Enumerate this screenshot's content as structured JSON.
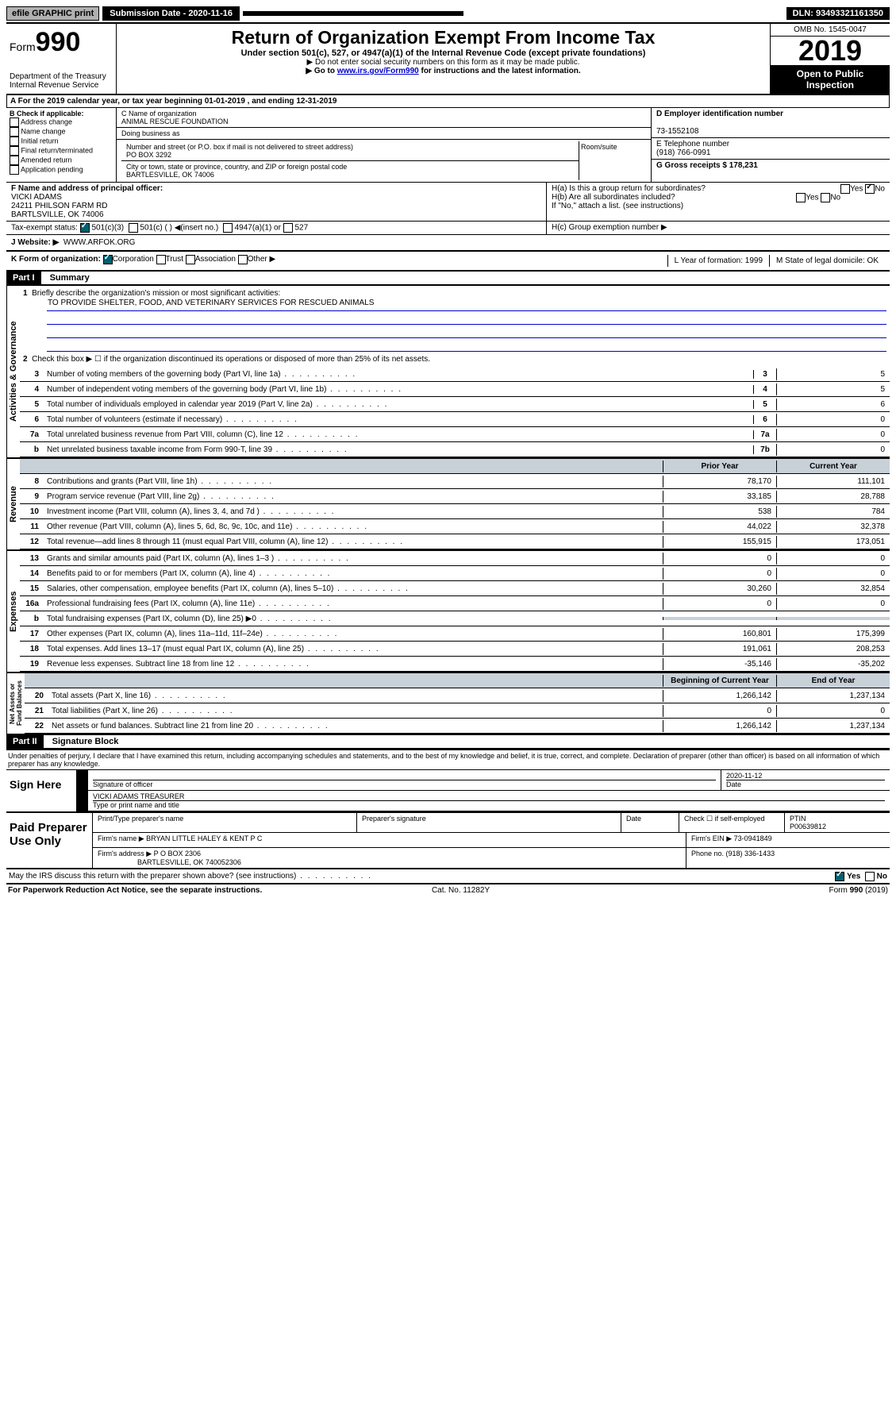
{
  "topbar": {
    "efile": "efile GRAPHIC print",
    "submission_label": "Submission Date - 2020-11-16",
    "dln": "DLN: 93493321161350"
  },
  "header": {
    "form_prefix": "Form",
    "form_number": "990",
    "dept": "Department of the Treasury\nInternal Revenue Service",
    "title": "Return of Organization Exempt From Income Tax",
    "subtitle": "Under section 501(c), 527, or 4947(a)(1) of the Internal Revenue Code (except private foundations)",
    "note1": "▶ Do not enter social security numbers on this form as it may be made public.",
    "note2_pre": "▶ Go to ",
    "note2_link": "www.irs.gov/Form990",
    "note2_post": " for instructions and the latest information.",
    "omb": "OMB No. 1545-0047",
    "year": "2019",
    "open": "Open to Public Inspection"
  },
  "period": "A For the 2019 calendar year, or tax year beginning 01-01-2019   , and ending 12-31-2019",
  "boxB": {
    "label": "B Check if applicable:",
    "opts": [
      "Address change",
      "Name change",
      "Initial return",
      "Final return/terminated",
      "Amended return",
      "Application pending"
    ]
  },
  "boxC": {
    "name_label": "C Name of organization",
    "name": "ANIMAL RESCUE FOUNDATION",
    "dba": "Doing business as",
    "addr_label": "Number and street (or P.O. box if mail is not delivered to street address)",
    "room": "Room/suite",
    "addr": "PO BOX 3292",
    "city_label": "City or town, state or province, country, and ZIP or foreign postal code",
    "city": "BARTLESVILLE, OK  74006"
  },
  "boxD": {
    "label": "D Employer identification number",
    "val": "73-1552108"
  },
  "boxE": {
    "label": "E Telephone number",
    "val": "(918) 766-0991"
  },
  "boxG": {
    "label": "G Gross receipts $ 178,231"
  },
  "boxF": {
    "label": "F Name and address of principal officer:",
    "name": "VICKI ADAMS",
    "addr1": "24211 PHILSON FARM RD",
    "addr2": "BARTLSVILLE, OK  74006"
  },
  "boxH": {
    "a": "H(a)  Is this a group return for subordinates?",
    "b": "H(b)  Are all subordinates included?",
    "b2": "If \"No,\" attach a list. (see instructions)",
    "c": "H(c)  Group exemption number ▶"
  },
  "taxstatus": {
    "label": "Tax-exempt status:",
    "c3": "501(c)(3)",
    "c": "501(c) (  ) ◀(insert no.)",
    "a1": "4947(a)(1) or",
    "s527": "527"
  },
  "boxJ": {
    "label": "J   Website: ▶",
    "val": "WWW.ARFOK.ORG"
  },
  "boxK": {
    "label": "K Form of organization:",
    "corp": "Corporation",
    "trust": "Trust",
    "assoc": "Association",
    "other": "Other ▶"
  },
  "boxL": {
    "label": "L Year of formation: 1999"
  },
  "boxM": {
    "label": "M State of legal domicile: OK"
  },
  "part1": {
    "header": "Part I",
    "title": "Summary",
    "q1": "Briefly describe the organization's mission or most significant activities:",
    "mission": "TO PROVIDE SHELTER, FOOD, AND VETERINARY SERVICES FOR RESCUED ANIMALS",
    "q2": "Check this box ▶ ☐  if the organization discontinued its operations or disposed of more than 25% of its net assets.",
    "lines_gov": [
      {
        "n": "3",
        "t": "Number of voting members of the governing body (Part VI, line 1a)",
        "box": "3",
        "v": "5"
      },
      {
        "n": "4",
        "t": "Number of independent voting members of the governing body (Part VI, line 1b)",
        "box": "4",
        "v": "5"
      },
      {
        "n": "5",
        "t": "Total number of individuals employed in calendar year 2019 (Part V, line 2a)",
        "box": "5",
        "v": "6"
      },
      {
        "n": "6",
        "t": "Total number of volunteers (estimate if necessary)",
        "box": "6",
        "v": "0"
      },
      {
        "n": "7a",
        "t": "Total unrelated business revenue from Part VIII, column (C), line 12",
        "box": "7a",
        "v": "0"
      },
      {
        "n": "b",
        "t": "Net unrelated business taxable income from Form 990-T, line 39",
        "box": "7b",
        "v": "0"
      }
    ],
    "col_prior": "Prior Year",
    "col_current": "Current Year",
    "lines_rev": [
      {
        "n": "8",
        "t": "Contributions and grants (Part VIII, line 1h)",
        "p": "78,170",
        "c": "111,101"
      },
      {
        "n": "9",
        "t": "Program service revenue (Part VIII, line 2g)",
        "p": "33,185",
        "c": "28,788"
      },
      {
        "n": "10",
        "t": "Investment income (Part VIII, column (A), lines 3, 4, and 7d )",
        "p": "538",
        "c": "784"
      },
      {
        "n": "11",
        "t": "Other revenue (Part VIII, column (A), lines 5, 6d, 8c, 9c, 10c, and 11e)",
        "p": "44,022",
        "c": "32,378"
      },
      {
        "n": "12",
        "t": "Total revenue—add lines 8 through 11 (must equal Part VIII, column (A), line 12)",
        "p": "155,915",
        "c": "173,051"
      }
    ],
    "lines_exp": [
      {
        "n": "13",
        "t": "Grants and similar amounts paid (Part IX, column (A), lines 1–3 )",
        "p": "0",
        "c": "0"
      },
      {
        "n": "14",
        "t": "Benefits paid to or for members (Part IX, column (A), line 4)",
        "p": "0",
        "c": "0"
      },
      {
        "n": "15",
        "t": "Salaries, other compensation, employee benefits (Part IX, column (A), lines 5–10)",
        "p": "30,260",
        "c": "32,854"
      },
      {
        "n": "16a",
        "t": "Professional fundraising fees (Part IX, column (A), line 11e)",
        "p": "0",
        "c": "0"
      },
      {
        "n": "b",
        "t": "Total fundraising expenses (Part IX, column (D), line 25) ▶0",
        "p": "",
        "c": "",
        "shaded": true
      },
      {
        "n": "17",
        "t": "Other expenses (Part IX, column (A), lines 11a–11d, 11f–24e)",
        "p": "160,801",
        "c": "175,399"
      },
      {
        "n": "18",
        "t": "Total expenses. Add lines 13–17 (must equal Part IX, column (A), line 25)",
        "p": "191,061",
        "c": "208,253"
      },
      {
        "n": "19",
        "t": "Revenue less expenses. Subtract line 18 from line 12",
        "p": "-35,146",
        "c": "-35,202"
      }
    ],
    "col_begin": "Beginning of Current Year",
    "col_end": "End of Year",
    "lines_net": [
      {
        "n": "20",
        "t": "Total assets (Part X, line 16)",
        "p": "1,266,142",
        "c": "1,237,134"
      },
      {
        "n": "21",
        "t": "Total liabilities (Part X, line 26)",
        "p": "0",
        "c": "0"
      },
      {
        "n": "22",
        "t": "Net assets or fund balances. Subtract line 21 from line 20",
        "p": "1,266,142",
        "c": "1,237,134"
      }
    ]
  },
  "part2": {
    "header": "Part II",
    "title": "Signature Block",
    "perjury": "Under penalties of perjury, I declare that I have examined this return, including accompanying schedules and statements, and to the best of my knowledge and belief, it is true, correct, and complete. Declaration of preparer (other than officer) is based on all information of which preparer has any knowledge.",
    "sign_here": "Sign Here",
    "sig_officer": "Signature of officer",
    "date": "2020-11-12",
    "date_label": "Date",
    "officer_name": "VICKI ADAMS TREASURER",
    "type_name": "Type or print name and title",
    "paid": "Paid Preparer Use Only",
    "prep_name_label": "Print/Type preparer's name",
    "prep_sig_label": "Preparer's signature",
    "check_self": "Check ☐ if self-employed",
    "ptin_label": "PTIN",
    "ptin": "P00639812",
    "firm_name_label": "Firm's name    ▶",
    "firm_name": "BRYAN LITTLE HALEY & KENT P C",
    "firm_ein": "Firm's EIN ▶ 73-0941849",
    "firm_addr_label": "Firm's address ▶",
    "firm_addr": "P O BOX 2306",
    "firm_city": "BARTLESVILLE, OK  740052306",
    "phone": "Phone no. (918) 336-1433",
    "discuss": "May the IRS discuss this return with the preparer shown above? (see instructions)",
    "yes": "Yes",
    "no": "No"
  },
  "footer": {
    "paperwork": "For Paperwork Reduction Act Notice, see the separate instructions.",
    "cat": "Cat. No. 11282Y",
    "form": "Form 990 (2019)"
  }
}
